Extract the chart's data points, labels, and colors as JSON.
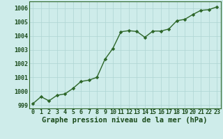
{
  "x": [
    0,
    1,
    2,
    3,
    4,
    5,
    6,
    7,
    8,
    9,
    10,
    11,
    12,
    13,
    14,
    15,
    16,
    17,
    18,
    19,
    20,
    21,
    22,
    23
  ],
  "y": [
    999.1,
    999.6,
    999.3,
    999.7,
    999.8,
    1000.2,
    1000.7,
    1000.8,
    1001.0,
    1002.3,
    1003.1,
    1004.3,
    1004.38,
    1004.32,
    1003.9,
    1004.35,
    1004.35,
    1004.5,
    1005.1,
    1005.2,
    1005.55,
    1005.85,
    1005.9,
    1006.1
  ],
  "line_color": "#2d6629",
  "marker_color": "#2d6629",
  "bg_color": "#ceecea",
  "grid_color": "#aed4d2",
  "xlabel": "Graphe pression niveau de la mer (hPa)",
  "ylim": [
    998.75,
    1006.5
  ],
  "xlim": [
    -0.5,
    23.5
  ],
  "yticks": [
    999,
    1000,
    1001,
    1002,
    1003,
    1004,
    1005,
    1006
  ],
  "xticks": [
    0,
    1,
    2,
    3,
    4,
    5,
    6,
    7,
    8,
    9,
    10,
    11,
    12,
    13,
    14,
    15,
    16,
    17,
    18,
    19,
    20,
    21,
    22,
    23
  ],
  "xlabel_fontsize": 7.5,
  "tick_fontsize": 6.0,
  "tick_color": "#1a4a1a",
  "xlabel_color": "#1a4a1a",
  "border_color": "#2d6629",
  "linewidth": 1.0,
  "markersize": 2.8
}
